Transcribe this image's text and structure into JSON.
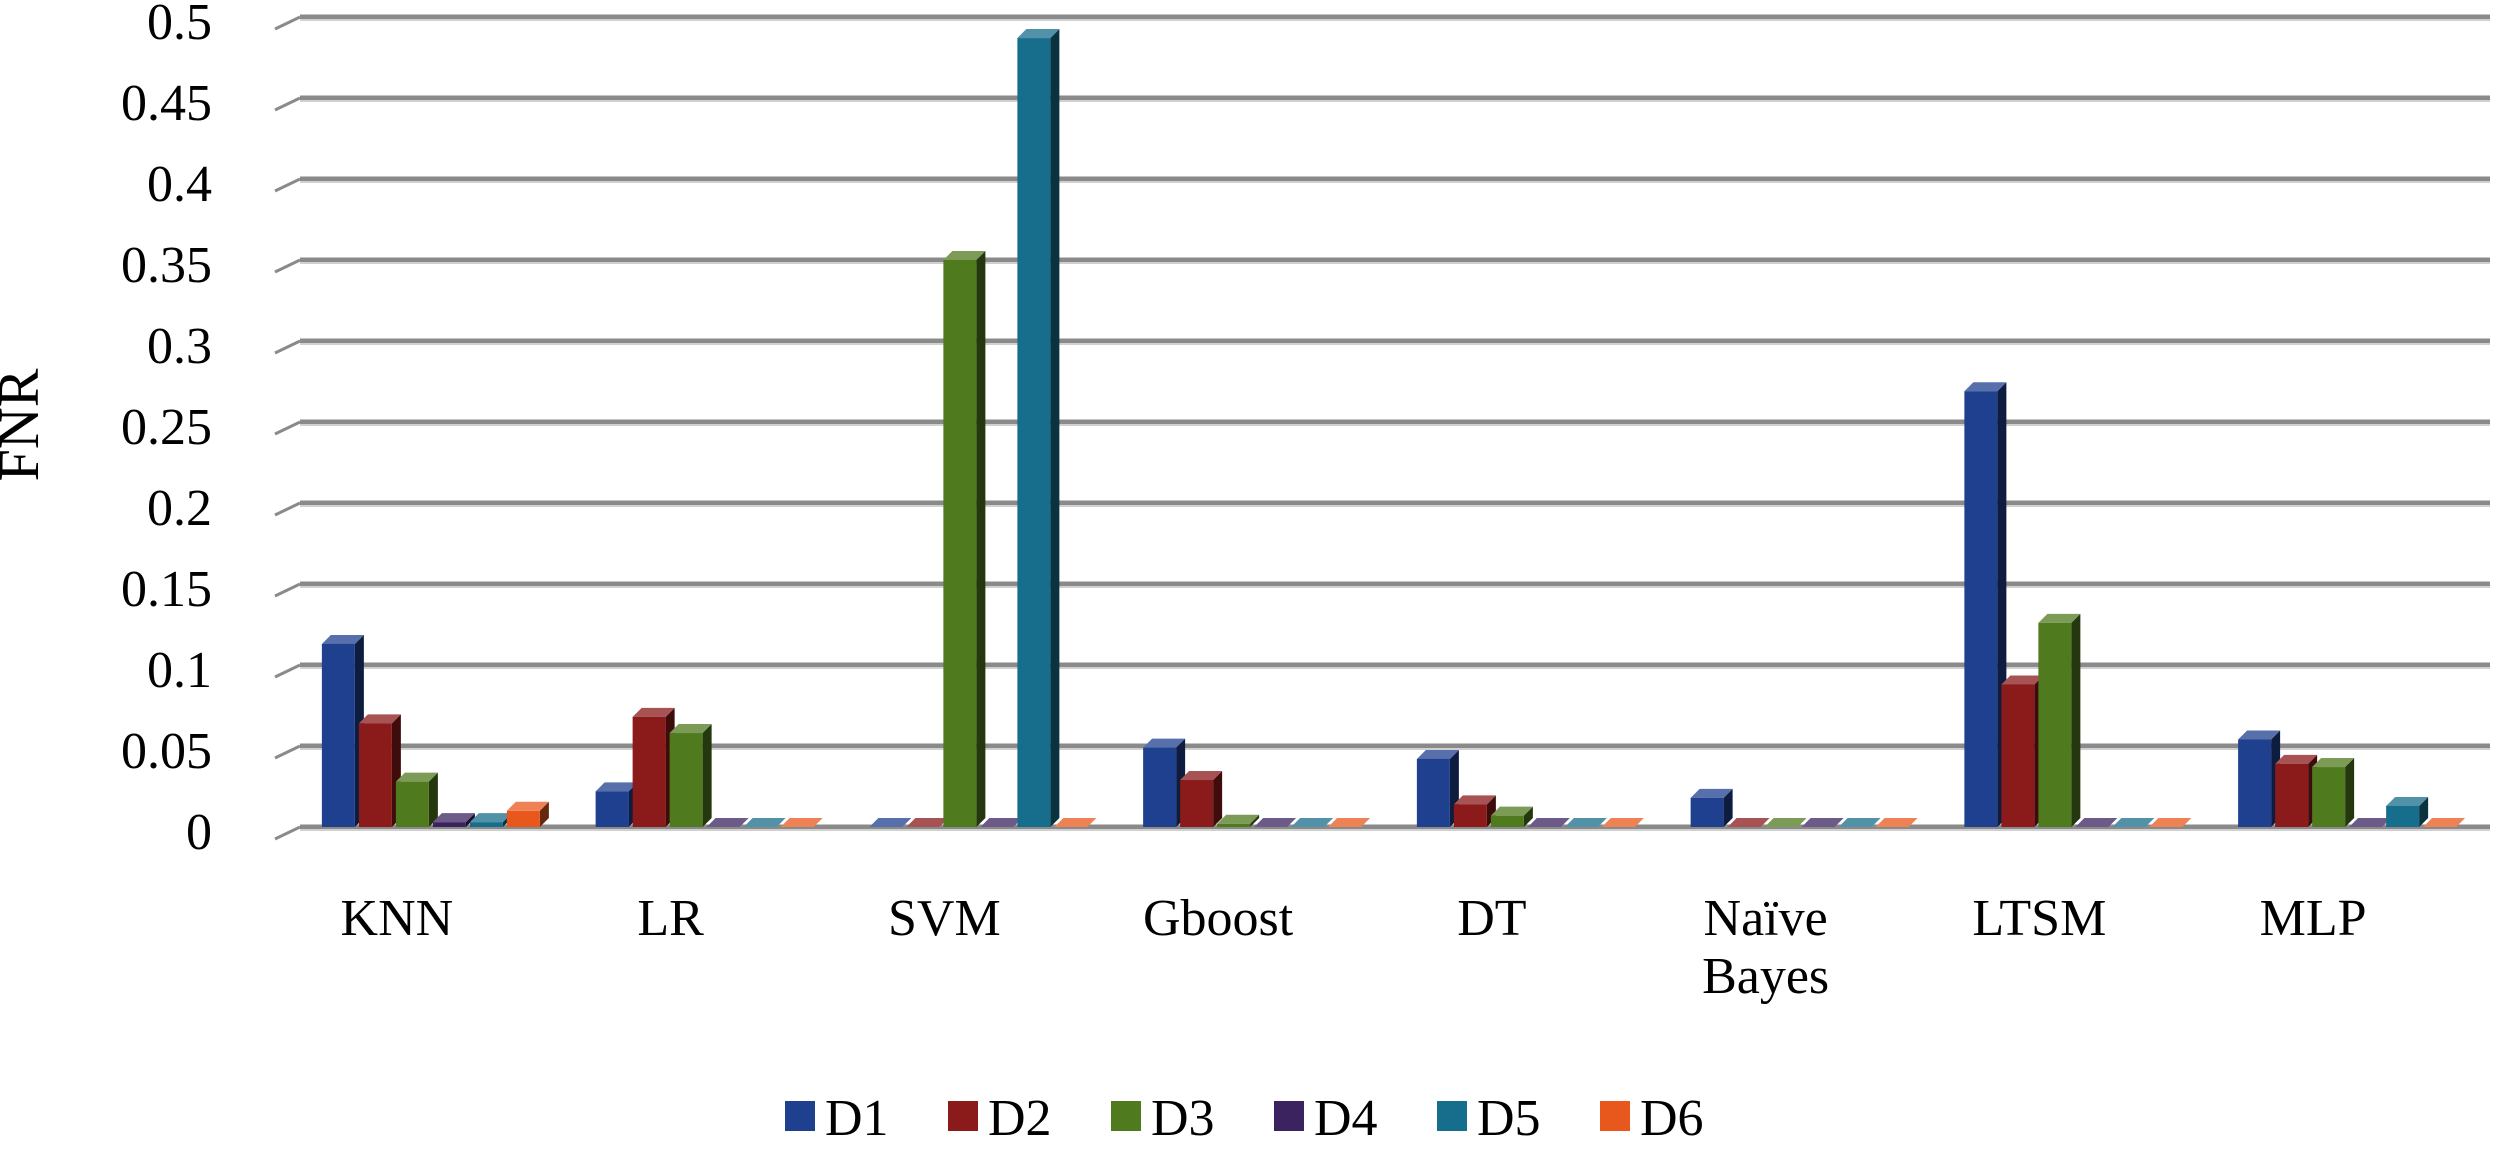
{
  "chart_data": {
    "type": "bar",
    "style": "3d-clustered-column",
    "title": "",
    "xlabel": "",
    "ylabel": "FNR",
    "ylim": [
      0,
      0.5
    ],
    "yticks": [
      0,
      0.05,
      0.1,
      0.15,
      0.2,
      0.25,
      0.3,
      0.35,
      0.4,
      0.45,
      0.5
    ],
    "ytick_labels": [
      "0",
      "0.05",
      "0.1",
      "0.15",
      "0.2",
      "0.25",
      "0.3",
      "0.35",
      "0.4",
      "0.45",
      "0.5"
    ],
    "grid": true,
    "legend_position": "bottom",
    "categories": [
      [
        "KNN"
      ],
      [
        "LR"
      ],
      [
        "SVM"
      ],
      [
        "Gboost"
      ],
      [
        "DT"
      ],
      [
        "Naïve",
        "Bayes"
      ],
      [
        "LTSM"
      ],
      [
        "MLP"
      ]
    ],
    "series": [
      {
        "name": "D1",
        "color": "#1F3F8F",
        "values": [
          0.113,
          0.022,
          0.0,
          0.049,
          0.042,
          0.018,
          0.269,
          0.054
        ]
      },
      {
        "name": "D2",
        "color": "#8B1A1A",
        "values": [
          0.064,
          0.068,
          0.0,
          0.029,
          0.014,
          0.0,
          0.088,
          0.039
        ]
      },
      {
        "name": "D3",
        "color": "#4F7A1E",
        "values": [
          0.028,
          0.058,
          0.35,
          0.002,
          0.007,
          0.0,
          0.126,
          0.037
        ]
      },
      {
        "name": "D4",
        "color": "#3B2360",
        "values": [
          0.003,
          0.0,
          0.0,
          0.0,
          0.0,
          0.0,
          0.0,
          0.0
        ]
      },
      {
        "name": "D5",
        "color": "#176E8C",
        "values": [
          0.003,
          0.0,
          0.487,
          0.0,
          0.0,
          0.0,
          0.0,
          0.013
        ]
      },
      {
        "name": "D6",
        "color": "#E8581C",
        "values": [
          0.01,
          0.0,
          0.0,
          0.0,
          0.0,
          0.0,
          0.0,
          0.0
        ]
      }
    ]
  }
}
